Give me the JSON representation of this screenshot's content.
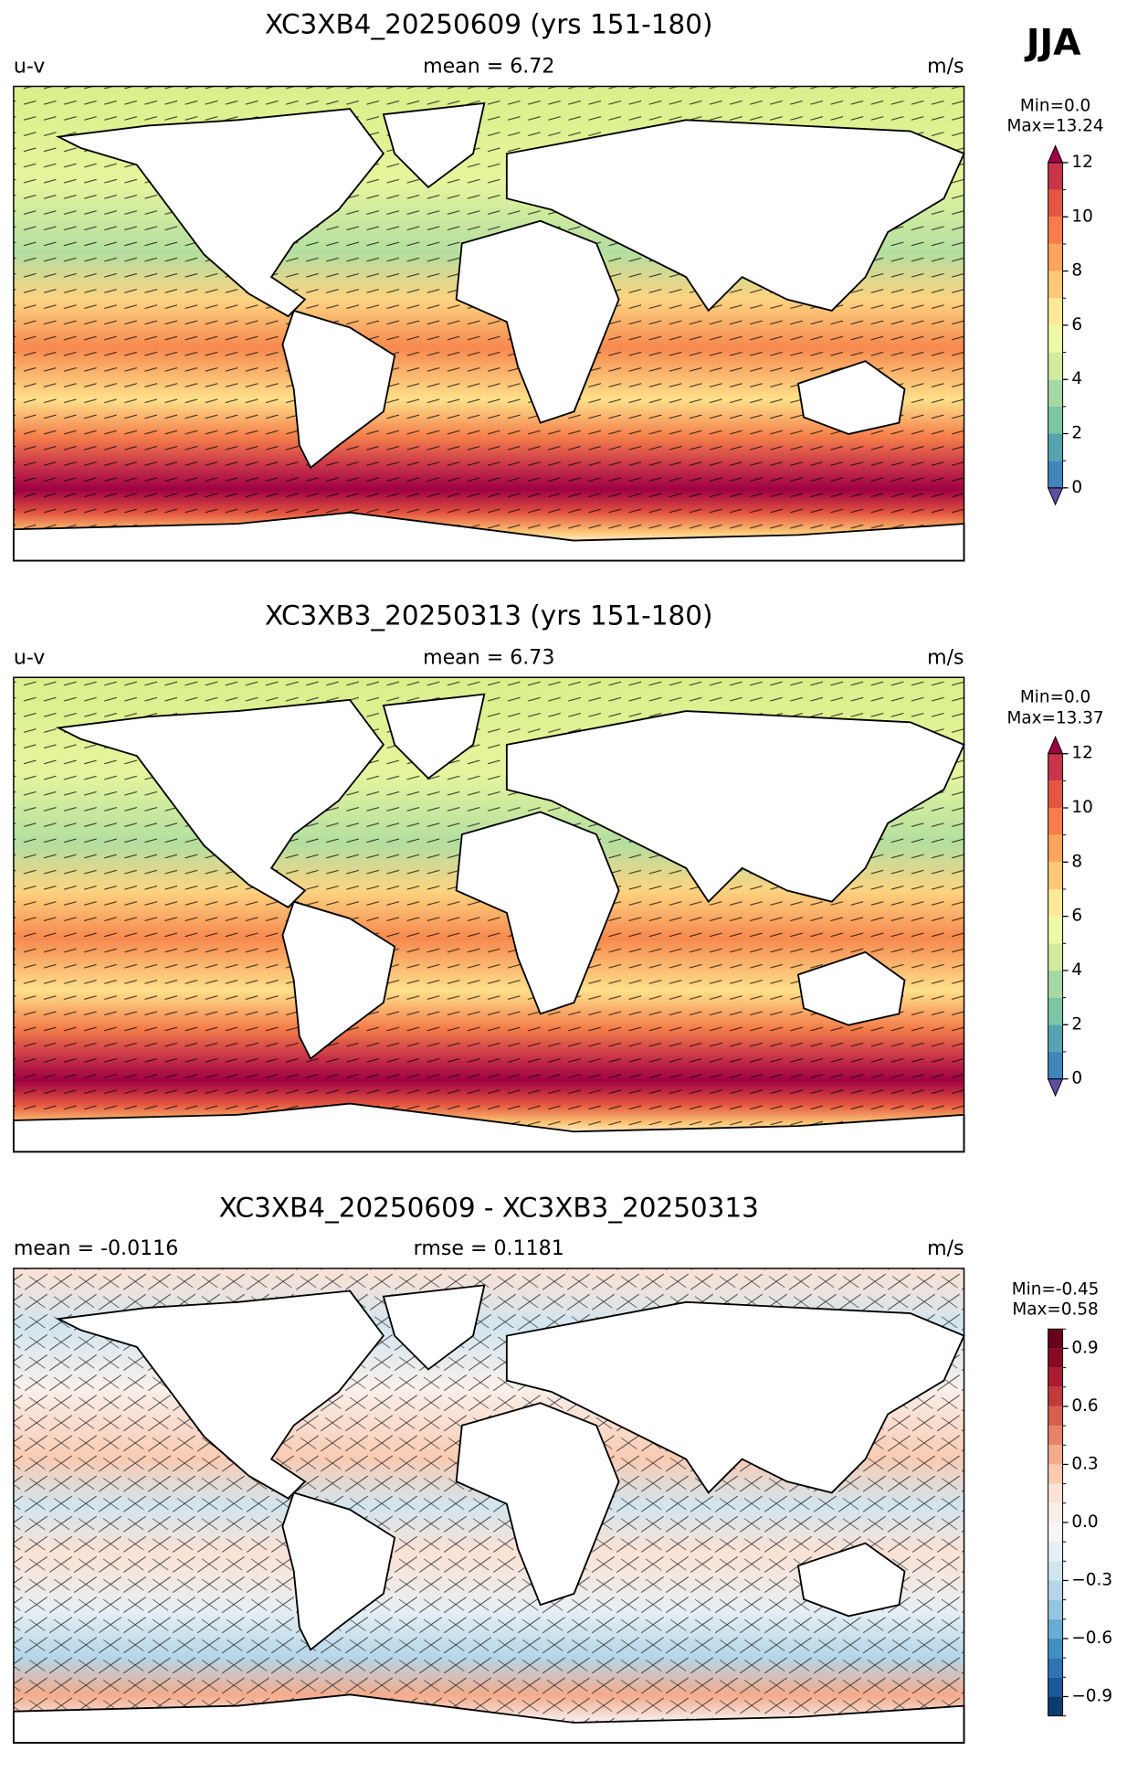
{
  "season": "JJA",
  "panels": [
    {
      "title": "XC3XB4_20250609 (yrs 151-180)",
      "left": "u-v",
      "center": "mean = 6.72",
      "right": "m/s",
      "min_text": "Min=0.0",
      "max_text": "Max=13.24",
      "colorbar": {
        "levels": [
          0,
          1,
          2,
          3,
          4,
          5,
          6,
          7,
          8,
          9,
          10,
          11,
          12
        ],
        "ticks": [
          0,
          2,
          4,
          6,
          8,
          10,
          12
        ],
        "colors": [
          "#3f86bc",
          "#55a5b0",
          "#7bc6a6",
          "#a7d8a4",
          "#d0ec9c",
          "#eef8a6",
          "#fee999",
          "#fdc877",
          "#fca55d",
          "#f47d4a",
          "#e45640",
          "#c8344a"
        ],
        "under_color": "#5e4fa2",
        "over_color": "#9e0142",
        "extend": true
      }
    },
    {
      "title": "XC3XB3_20250313 (yrs 151-180)",
      "left": "u-v",
      "center": "mean = 6.73",
      "right": "m/s",
      "min_text": "Min=0.0",
      "max_text": "Max=13.37",
      "colorbar": {
        "levels": [
          0,
          1,
          2,
          3,
          4,
          5,
          6,
          7,
          8,
          9,
          10,
          11,
          12
        ],
        "ticks": [
          0,
          2,
          4,
          6,
          8,
          10,
          12
        ],
        "colors": [
          "#3f86bc",
          "#55a5b0",
          "#7bc6a6",
          "#a7d8a4",
          "#d0ec9c",
          "#eef8a6",
          "#fee999",
          "#fdc877",
          "#fca55d",
          "#f47d4a",
          "#e45640",
          "#c8344a"
        ],
        "under_color": "#5e4fa2",
        "over_color": "#9e0142",
        "extend": true
      }
    },
    {
      "title": "XC3XB4_20250609 - XC3XB3_20250313",
      "left": "mean = -0.0116",
      "center": "rmse = 0.1181",
      "right": "m/s",
      "min_text": "Min=-0.45",
      "max_text": "Max=0.58",
      "colorbar": {
        "levels": [
          -1,
          -0.9,
          -0.8,
          -0.7,
          -0.6,
          -0.5,
          -0.4,
          -0.3,
          -0.2,
          -0.1,
          0,
          0.1,
          0.2,
          0.3,
          0.4,
          0.5,
          0.6,
          0.7,
          0.8,
          0.9,
          1
        ],
        "ticks": [
          {
            "value": -0.9,
            "label": "−0.9"
          },
          {
            "value": -0.6,
            "label": "−0.6"
          },
          {
            "value": -0.3,
            "label": "−0.3"
          },
          {
            "value": 0,
            "label": "0.0"
          },
          0.3,
          0.6,
          0.9
        ],
        "colors": [
          "#0b3c6f",
          "#1a5a9a",
          "#2c74b3",
          "#4290c2",
          "#6aabd1",
          "#93c5de",
          "#b5d6e8",
          "#d2e5ef",
          "#e7eff4",
          "#f6f6f6",
          "#f9f0eb",
          "#fbe2d4",
          "#f9cbb3",
          "#f4ab8b",
          "#e78468",
          "#d6604d",
          "#c23b3b",
          "#a91b2d",
          "#870a24",
          "#67001f"
        ],
        "extend": false
      }
    }
  ]
}
